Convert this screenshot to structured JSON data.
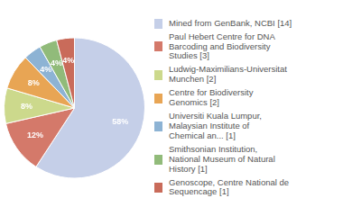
{
  "chart_data": {
    "type": "pie",
    "categories": [
      "Mined from GenBank, NCBI [14]",
      "Paul Hebert Centre for DNA\nBarcoding and Biodiversity\nStudies [3]",
      "Ludwig-Maximilians-Universitat\nMunchen [2]",
      "Centre for Biodiversity\nGenomics [2]",
      "Universiti Kuala Lumpur,\nMalaysian Institute of\nChemical an... [1]",
      "Smithsonian Institution,\nNational Museum of Natural\nHistory [1]",
      "Genoscope, Centre National de\nSequencage [1]"
    ],
    "values": [
      58,
      12,
      8,
      8,
      4,
      4,
      4
    ],
    "value_labels": [
      "58%",
      "12%",
      "8%",
      "8%",
      "4%",
      "4%",
      "4%"
    ],
    "colors": [
      "#c5cfe8",
      "#d4796a",
      "#ccd98c",
      "#e8a554",
      "#8db3d4",
      "#91bb7a",
      "#c96b5a"
    ],
    "data_labels": true,
    "legend": "right"
  }
}
